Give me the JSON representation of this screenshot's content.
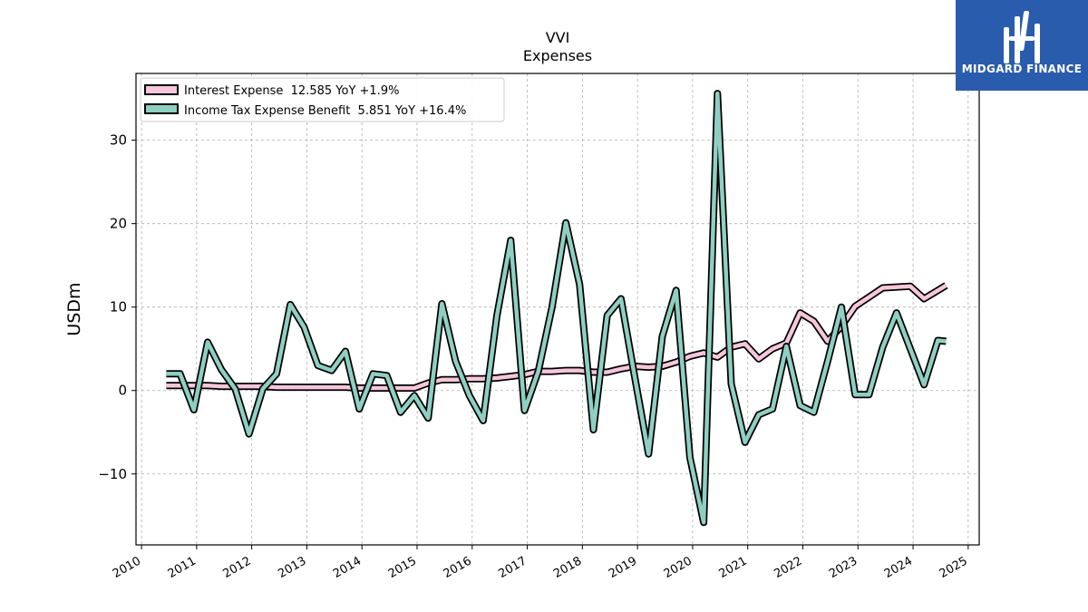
{
  "brand": {
    "name": "MIDGARD FINANCE",
    "color": "#2a5cad"
  },
  "chart_data": {
    "type": "line",
    "title": "VVI",
    "subtitle": "Expenses",
    "ylabel": "USDm",
    "xlabel": "",
    "xlim": [
      2009.9,
      2025.2
    ],
    "ylim": [
      -18.5,
      38.0
    ],
    "yticks": [
      -10,
      0,
      10,
      20,
      30
    ],
    "ytick_labels": [
      "−10",
      "0",
      "10",
      "20",
      "30"
    ],
    "xticks": [
      2010,
      2011,
      2012,
      2013,
      2014,
      2015,
      2016,
      2017,
      2018,
      2019,
      2020,
      2021,
      2022,
      2023,
      2024,
      2025
    ],
    "xtick_labels": [
      "2010",
      "2011",
      "2012",
      "2013",
      "2014",
      "2015",
      "2016",
      "2017",
      "2018",
      "2019",
      "2020",
      "2021",
      "2022",
      "2023",
      "2024",
      "2025"
    ],
    "grid": true,
    "legend_position": "top-left",
    "x": [
      2010.45,
      2010.7,
      2010.95,
      2011.2,
      2011.45,
      2011.7,
      2011.95,
      2012.2,
      2012.45,
      2012.7,
      2012.95,
      2013.2,
      2013.45,
      2013.7,
      2013.95,
      2014.2,
      2014.45,
      2014.7,
      2014.95,
      2015.2,
      2015.45,
      2015.7,
      2015.95,
      2016.2,
      2016.45,
      2016.7,
      2016.95,
      2017.2,
      2017.45,
      2017.7,
      2017.95,
      2018.2,
      2018.45,
      2018.7,
      2018.95,
      2019.2,
      2019.45,
      2019.7,
      2019.95,
      2020.2,
      2020.45,
      2020.7,
      2020.95,
      2021.2,
      2021.45,
      2021.7,
      2021.95,
      2022.2,
      2022.45,
      2022.7,
      2022.95,
      2023.2,
      2023.45,
      2023.7,
      2023.95,
      2024.2,
      2024.45,
      2024.6
    ],
    "series": [
      {
        "name": "Interest Expense  12.585 YoY +1.9%",
        "color": "#f7c6da",
        "values": [
          0.6,
          0.6,
          0.6,
          0.6,
          0.5,
          0.5,
          0.5,
          0.5,
          0.4,
          0.4,
          0.4,
          0.4,
          0.4,
          0.4,
          0.3,
          0.3,
          0.3,
          0.3,
          0.3,
          0.9,
          1.3,
          1.3,
          1.4,
          1.4,
          1.5,
          1.7,
          1.9,
          2.3,
          2.3,
          2.4,
          2.4,
          2.2,
          2.2,
          2.6,
          2.9,
          2.8,
          2.9,
          3.4,
          4.1,
          4.5,
          4.0,
          5.2,
          5.6,
          3.8,
          5.0,
          5.7,
          9.3,
          8.3,
          5.9,
          7.7,
          10.1,
          11.2,
          12.3,
          12.4,
          12.5,
          11.0,
          12.0,
          12.6
        ]
      },
      {
        "name": "Income Tax Expense Benefit  5.851 YoY +16.4%",
        "color": "#8ecfc2",
        "values": [
          2.0,
          2.0,
          -2.3,
          5.8,
          2.5,
          0.2,
          -5.2,
          0.2,
          2.0,
          10.3,
          7.6,
          3.0,
          2.4,
          4.7,
          -2.2,
          2.0,
          1.8,
          -2.6,
          -0.6,
          -3.3,
          10.4,
          3.5,
          -0.6,
          -3.6,
          9.0,
          18.0,
          -2.4,
          2.3,
          10.0,
          20.1,
          12.7,
          -4.7,
          9.0,
          11.0,
          1.6,
          -7.6,
          6.5,
          12.0,
          -8.0,
          -15.8,
          35.6,
          0.8,
          -6.2,
          -2.9,
          -2.2,
          5.3,
          -1.8,
          -2.6,
          3.5,
          10.0,
          -0.5,
          -0.5,
          5.2,
          9.3,
          5.0,
          0.7,
          6.0,
          5.9
        ]
      }
    ]
  }
}
